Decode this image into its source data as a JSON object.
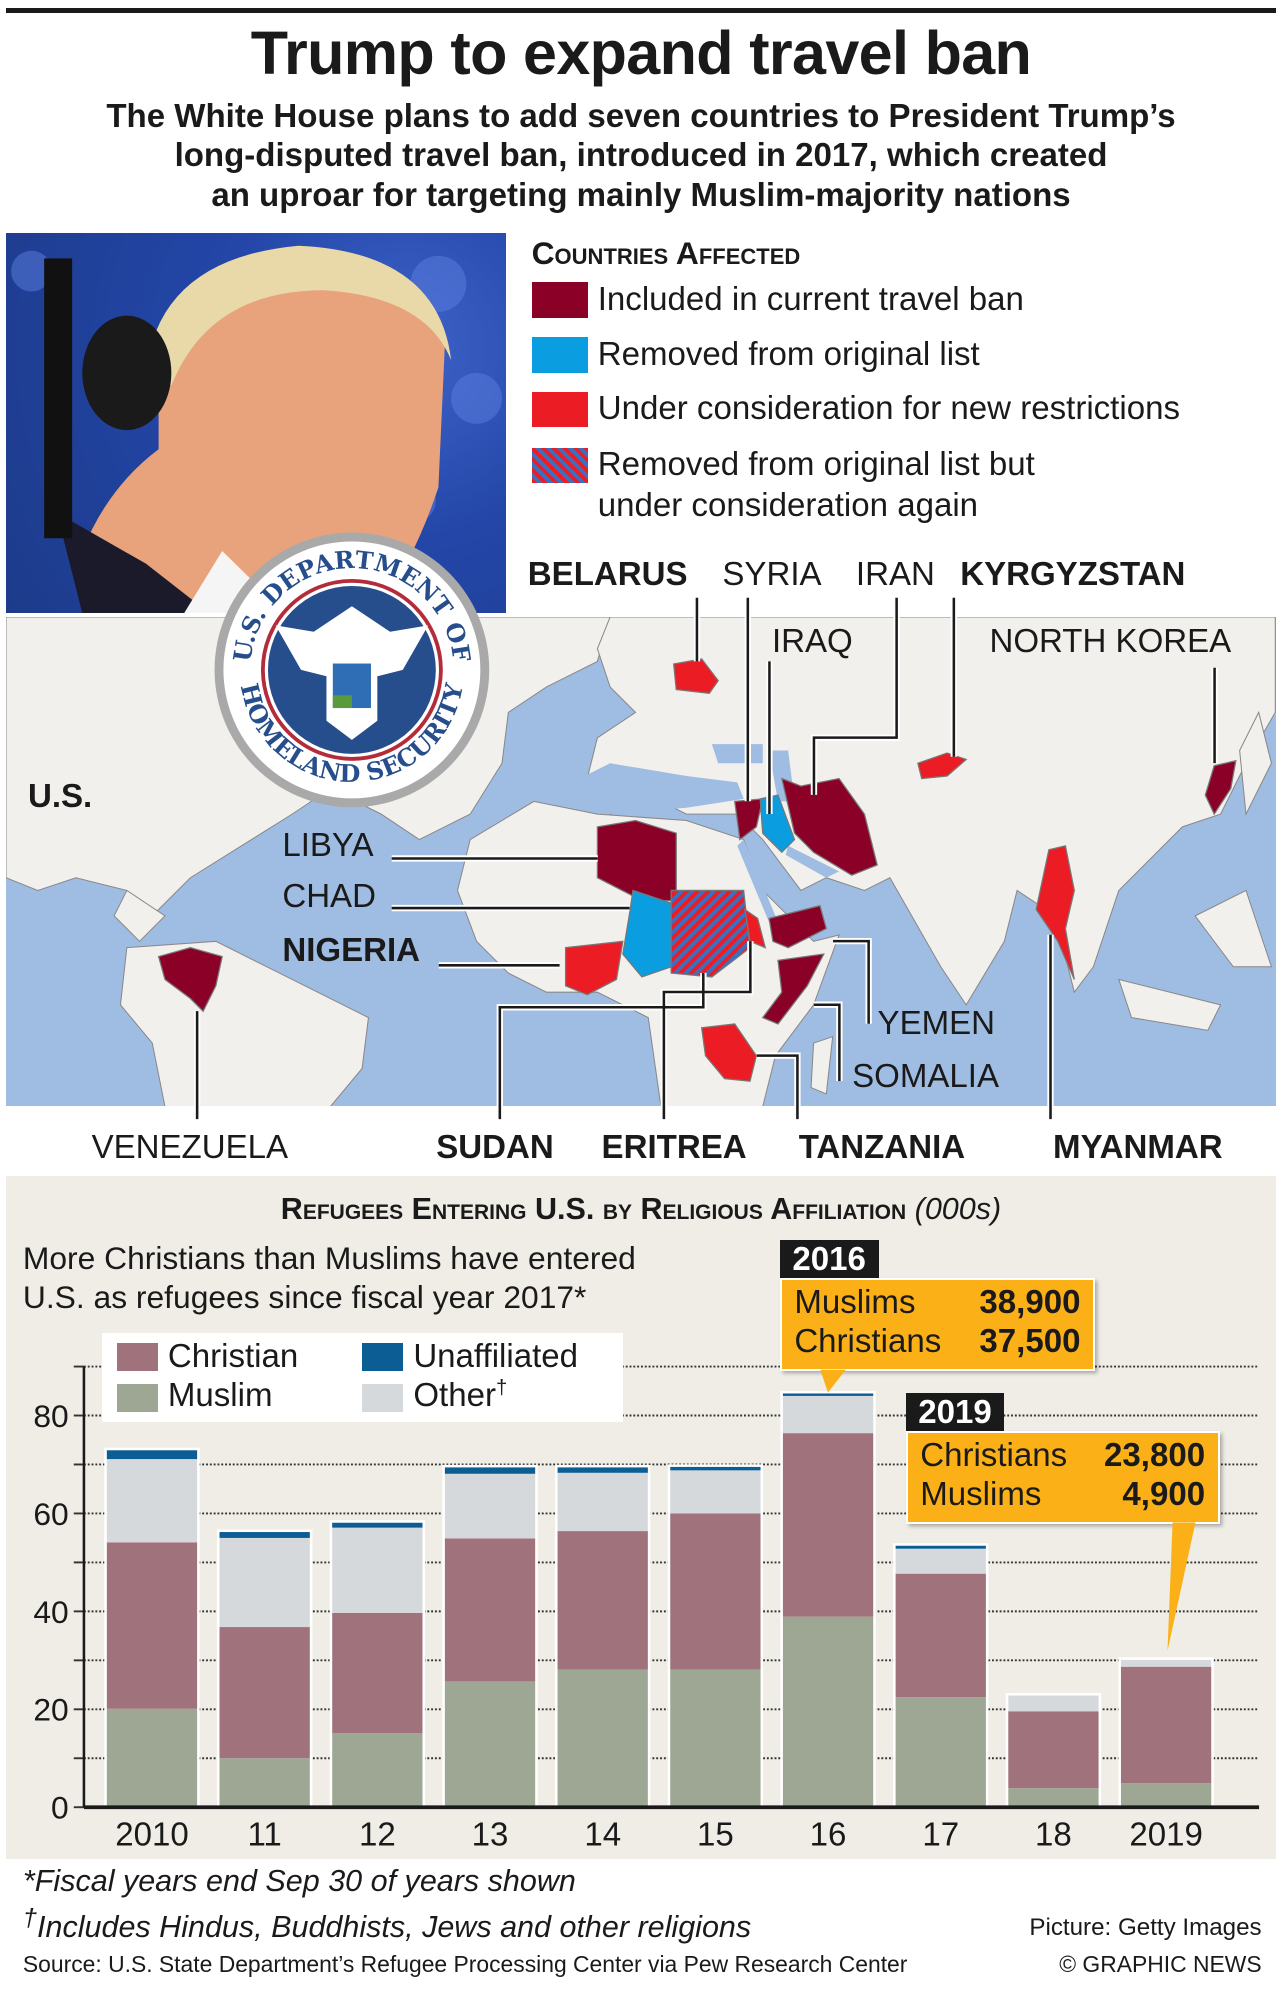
{
  "header": {
    "title": "Trump to expand travel ban",
    "subtitle_lines": [
      "The White House plans to add seven countries to President Trump’s",
      "long-disputed travel ban, introduced in 2017, which created",
      "an uproar for targeting mainly Muslim-majority nations"
    ]
  },
  "legend": {
    "title": "Countries Affected",
    "items": [
      {
        "label": "Included in current travel ban",
        "color": "#8b0026"
      },
      {
        "label": "Removed from original list",
        "color": "#0a9ee0"
      },
      {
        "label": "Under consideration for new restrictions",
        "color": "#ec1c24"
      },
      {
        "label": "Removed from original list but",
        "label2": "under consideration again",
        "color": "hatched"
      }
    ]
  },
  "seal": {
    "text_top": "U.S. DEPARTMENT OF",
    "text_bottom": "HOMELAND SECURITY"
  },
  "map_labels": {
    "belarus": "BELARUS",
    "syria": "SYRIA",
    "iran": "IRAN",
    "kyrgyzstan": "KYRGYZSTAN",
    "iraq": "IRAQ",
    "north_korea": "NORTH KOREA",
    "us": "U.S.",
    "libya": "LIBYA",
    "chad": "CHAD",
    "nigeria": "NIGERIA",
    "yemen": "YEMEN",
    "somalia": "SOMALIA",
    "venezuela": "VENEZUELA",
    "sudan": "SUDAN",
    "eritrea": "ERITREA",
    "tanzania": "TANZANIA",
    "myanmar": "MYANMAR"
  },
  "colors": {
    "maroon": "#8b0026",
    "blue": "#0a9ee0",
    "red": "#ec1c24",
    "orange": "#fbb017"
  },
  "chart_data": {
    "type": "bar",
    "stacked": true,
    "title": "Refugees Entering U.S. by Religious Affiliation",
    "title_unit": "(000s)",
    "subtitle_lines": [
      "More Christians than Muslims have entered",
      "U.S. as refugees since fiscal year 2017*"
    ],
    "categories": [
      "2010",
      "11",
      "12",
      "13",
      "14",
      "15",
      "16",
      "17",
      "18",
      "2019"
    ],
    "ylim": [
      0,
      90
    ],
    "yticks": [
      "0",
      "20",
      "40",
      "60",
      "80"
    ],
    "grid": true,
    "series": [
      {
        "name": "Muslim",
        "color": "#9ea793",
        "values": [
          20.1,
          10,
          15.1,
          25.7,
          28.1,
          28.1,
          38.9,
          22.5,
          3.9,
          4.9
        ]
      },
      {
        "name": "Christian",
        "color": "#a0737c",
        "values": [
          34,
          26.8,
          24.6,
          29.2,
          28.3,
          31.9,
          37.5,
          25.2,
          15.7,
          23.8
        ]
      },
      {
        "name": "Other†",
        "color": "#d6d9dc",
        "values": [
          17,
          18.2,
          17.4,
          13.2,
          11.9,
          8.8,
          7.6,
          5.1,
          3.2,
          1.4
        ]
      },
      {
        "name": "Unaffiliated",
        "color": "#0b5d93",
        "values": [
          1.8,
          1.2,
          1,
          1.3,
          1.1,
          0.7,
          0.5,
          0.6,
          0,
          0
        ]
      }
    ],
    "legend_labels": {
      "christian": "Christian",
      "muslim": "Muslim",
      "unaffiliated": "Unaffiliated",
      "other": "Other",
      "other_mark": "†"
    },
    "callouts": [
      {
        "year": "2016",
        "rows": [
          {
            "label": "Muslims",
            "value": "38,900"
          },
          {
            "label": "Christians",
            "value": "37,500"
          }
        ]
      },
      {
        "year": "2019",
        "rows": [
          {
            "label": "Christians",
            "value": "23,800"
          },
          {
            "label": "Muslims",
            "value": "4,900"
          }
        ]
      }
    ]
  },
  "footer": {
    "note1_mark": "*",
    "note1": "Fiscal years end Sep 30 of years shown",
    "note2_mark": "†",
    "note2": "Includes Hindus, Buddhists, Jews and other religions",
    "picture": "Picture: Getty Images",
    "source": "Source: U.S. State Department’s Refugee Processing Center via Pew Research Center",
    "credit": "© GRAPHIC NEWS"
  }
}
